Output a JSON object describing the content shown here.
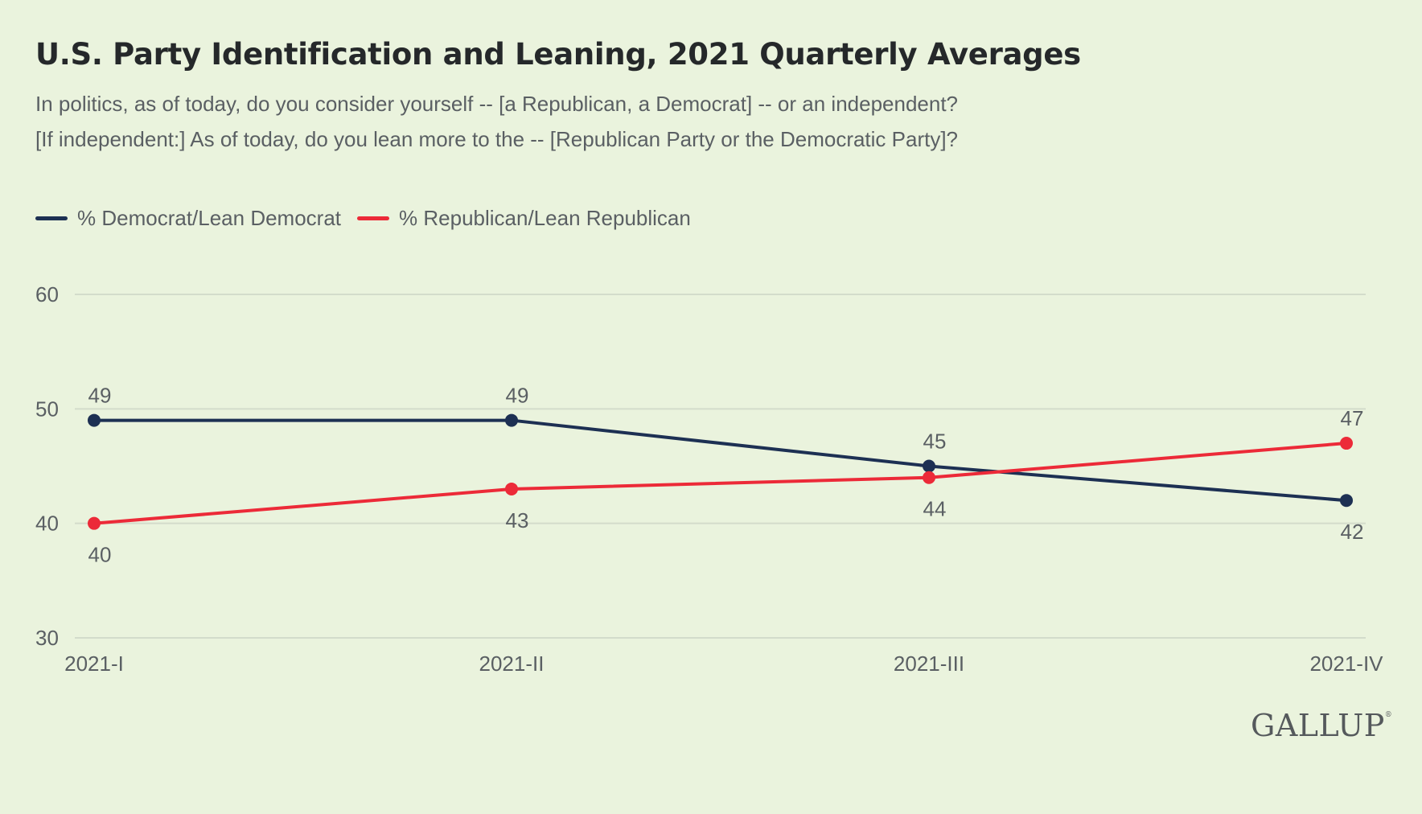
{
  "header": {
    "title": "U.S. Party Identification and Leaning, 2021 Quarterly Averages",
    "subtitle_line1": "In politics, as of today, do you consider yourself -- [a Republican, a Democrat] -- or an independent?",
    "subtitle_line2": "[If independent:] As of today, do you lean more to the -- [Republican Party or the Democratic Party]?"
  },
  "logo": {
    "text": "GALLUP",
    "mark": "®"
  },
  "chart_data": {
    "type": "line",
    "title": "U.S. Party Identification and Leaning, 2021 Quarterly Averages",
    "x": [
      "2021-I",
      "2021-II",
      "2021-III",
      "2021-IV"
    ],
    "ylim": [
      30,
      60
    ],
    "yticks": [
      30,
      40,
      50,
      60
    ],
    "grid": true,
    "legend_position": "top-left",
    "series": [
      {
        "name": "% Democrat/Lean Democrat",
        "color": "#1d3053",
        "values": [
          49,
          49,
          45,
          42
        ],
        "label_position": [
          "above",
          "above",
          "above",
          "below"
        ]
      },
      {
        "name": "% Republican/Lean Republican",
        "color": "#ec2a38",
        "values": [
          40,
          43,
          44,
          47
        ],
        "label_position": [
          "below",
          "below",
          "below",
          "above"
        ]
      }
    ]
  }
}
